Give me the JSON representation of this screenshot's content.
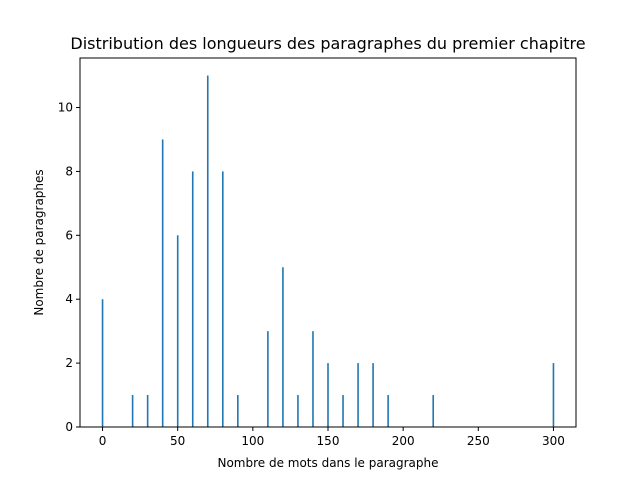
{
  "chart_data": {
    "type": "bar",
    "title": "Distribution des longueurs des paragraphes du premier chapitre",
    "xlabel": "Nombre de mots dans le paragraphe",
    "ylabel": "Nombre de paragraphes",
    "xlim": [
      -15,
      315
    ],
    "ylim": [
      0,
      11.55
    ],
    "x_ticks": [
      0,
      50,
      100,
      150,
      200,
      250,
      300
    ],
    "y_ticks": [
      0,
      2,
      4,
      6,
      8,
      10
    ],
    "grid": false,
    "bar_color": "#1f77b4",
    "bars": [
      {
        "x": 0,
        "value": 4
      },
      {
        "x": 20,
        "value": 1
      },
      {
        "x": 30,
        "value": 1
      },
      {
        "x": 40,
        "value": 9
      },
      {
        "x": 50,
        "value": 6
      },
      {
        "x": 60,
        "value": 8
      },
      {
        "x": 70,
        "value": 11
      },
      {
        "x": 80,
        "value": 8
      },
      {
        "x": 90,
        "value": 1
      },
      {
        "x": 110,
        "value": 3
      },
      {
        "x": 120,
        "value": 5
      },
      {
        "x": 130,
        "value": 1
      },
      {
        "x": 140,
        "value": 3
      },
      {
        "x": 150,
        "value": 2
      },
      {
        "x": 160,
        "value": 1
      },
      {
        "x": 170,
        "value": 2
      },
      {
        "x": 180,
        "value": 2
      },
      {
        "x": 190,
        "value": 1
      },
      {
        "x": 220,
        "value": 1
      },
      {
        "x": 300,
        "value": 2
      }
    ]
  }
}
